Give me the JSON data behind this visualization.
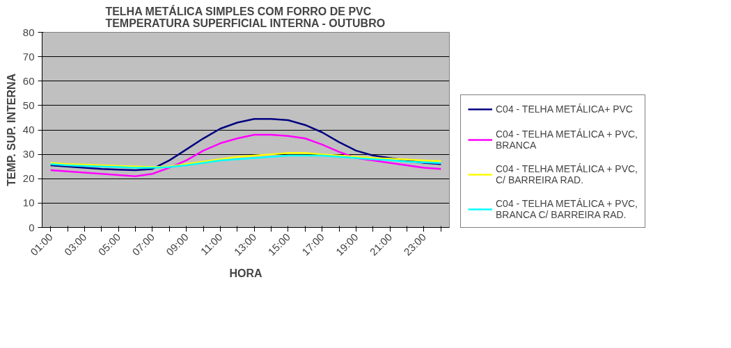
{
  "chart_data": {
    "type": "line",
    "title": "TELHA METÁLICA SIMPLES COM FORRO DE PVC\nTEMPERATURA SUPERFICIAL INTERNA - OUTUBRO",
    "xlabel": "HORA",
    "ylabel": "TEMP. SUP. INTERNA",
    "categories": [
      "01:00",
      null,
      "03:00",
      null,
      "05:00",
      null,
      "07:00",
      null,
      "09:00",
      null,
      "11:00",
      null,
      "13:00",
      null,
      "15:00",
      null,
      "17:00",
      null,
      "19:00",
      null,
      "21:00",
      null,
      "23:00",
      null
    ],
    "series": [
      {
        "name": "C04 - TELHA METÁLICA+ PVC",
        "color": "#000080",
        "values": [
          25.5,
          25,
          24.5,
          24,
          23.7,
          23.5,
          24,
          27.5,
          32,
          36.5,
          40.5,
          43,
          44.5,
          44.5,
          44,
          42,
          39,
          35,
          31.5,
          29.5,
          28.5,
          27.5,
          26.5,
          26
        ]
      },
      {
        "name": "C04 - TELHA METÁLICA + PVC, BRANCA",
        "color": "#ff00ff",
        "values": [
          23.5,
          23,
          22.5,
          22,
          21.5,
          21,
          22,
          24.5,
          27.5,
          31.5,
          34.5,
          36.5,
          38,
          38,
          37.5,
          36.5,
          34,
          31,
          28.5,
          27.5,
          26.5,
          25.5,
          24.5,
          24
        ]
      },
      {
        "name": "C04 - TELHA METÁLICA + PVC, C/ BARREIRA RAD.",
        "color": "#ffff00",
        "values": [
          26.5,
          26,
          25.8,
          25.5,
          25.2,
          25,
          24.8,
          25,
          26,
          27,
          28,
          29,
          29.5,
          30,
          30.5,
          30.5,
          30,
          29.5,
          29,
          28.5,
          28.2,
          27.8,
          27.5,
          27.2
        ]
      },
      {
        "name": "C04 - TELHA METÁLICA + PVC, BRANCA C/ BARREIRA RAD.",
        "color": "#00ffff",
        "values": [
          26,
          25.5,
          25.2,
          25,
          24.8,
          24.5,
          24.5,
          24.8,
          25.5,
          26.5,
          27.5,
          28,
          28.5,
          29,
          29.5,
          29.5,
          29.5,
          29,
          28.5,
          28,
          27.6,
          27,
          26.7,
          26.4
        ]
      }
    ],
    "ylim": [
      0,
      80
    ],
    "yticks": [
      0,
      10,
      20,
      30,
      40,
      50,
      60,
      70,
      80
    ],
    "grid": "y",
    "legend": "right",
    "marker": "none",
    "line_style": "solid"
  }
}
